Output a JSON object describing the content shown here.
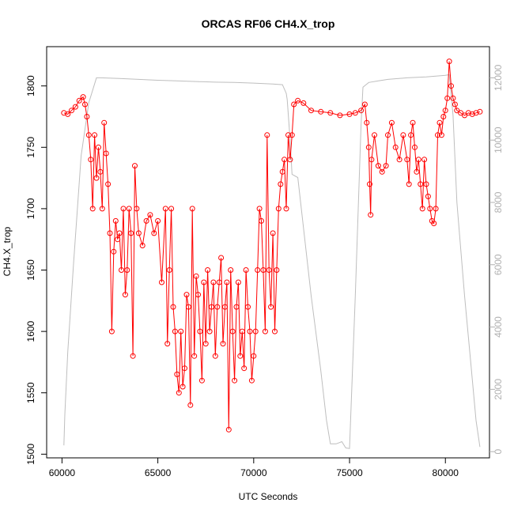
{
  "chart_data": {
    "type": "line",
    "title": "ORCAS RF06 CH4.X_trop",
    "xlabel": "UTC Seconds",
    "ylabel": "CH4.X_trop",
    "xlim": [
      59200,
      82300
    ],
    "ylim": [
      1497,
      1832
    ],
    "y2lim": [
      -200,
      13000
    ],
    "x_ticks": [
      "60000",
      "65000",
      "70000",
      "75000",
      "80000"
    ],
    "y_ticks": [
      "1500",
      "1550",
      "1600",
      "1650",
      "1700",
      "1750",
      "1800"
    ],
    "y2_ticks": [
      "0",
      "2000",
      "4000",
      "6000",
      "8000",
      "10000",
      "12000"
    ],
    "grid": false,
    "legend": "none",
    "colors": {
      "ch4": "#ff0000",
      "altitude": "#bebebe",
      "axis": "#000000",
      "right_axis": "#b0b0b0"
    },
    "series": [
      {
        "axis": "right",
        "style": "line",
        "x": [
          60100,
          60150,
          60300,
          60600,
          61000,
          61400,
          61800,
          62000,
          63000,
          64000,
          65000,
          66000,
          67000,
          68000,
          69000,
          70000,
          71000,
          71500,
          71700,
          71750,
          71900,
          72000,
          72300,
          73000,
          73500,
          73800,
          74000,
          74300,
          74600,
          74800,
          75000,
          75300,
          75600,
          75700,
          76000,
          76500,
          77000,
          78000,
          79000,
          80000,
          80200,
          80400,
          80600,
          81000,
          81300,
          81600,
          81800
        ],
        "values": [
          200,
          1200,
          3200,
          6000,
          9500,
          11200,
          12000,
          12000,
          11980,
          11950,
          11920,
          11900,
          11880,
          11860,
          11850,
          11830,
          11800,
          11780,
          11500,
          11300,
          10000,
          8900,
          8800,
          5000,
          2600,
          1000,
          250,
          250,
          320,
          120,
          100,
          5000,
          10500,
          11700,
          11850,
          11900,
          11950,
          12000,
          12030,
          12080,
          12100,
          10800,
          8000,
          5000,
          3000,
          1000,
          150
        ]
      },
      {
        "axis": "left",
        "style": "points-lines",
        "x": [
          60100,
          60300,
          60500,
          60700,
          60900,
          61100,
          61200,
          61300,
          61400,
          61500,
          61600,
          61700,
          61800,
          61900,
          62000,
          62100,
          62200,
          62300,
          62400,
          62500,
          62600,
          62700,
          62800,
          62900,
          63000,
          63100,
          63200,
          63300,
          63400,
          63500,
          63600,
          63700,
          63800,
          63900,
          64000,
          64200,
          64400,
          64600,
          64800,
          65000,
          65200,
          65400,
          65500,
          65600,
          65700,
          65800,
          65900,
          66000,
          66100,
          66200,
          66300,
          66400,
          66500,
          66600,
          66700,
          66800,
          66900,
          67000,
          67100,
          67200,
          67300,
          67400,
          67500,
          67600,
          67700,
          67800,
          67900,
          68000,
          68100,
          68200,
          68300,
          68400,
          68500,
          68600,
          68700,
          68800,
          68900,
          69000,
          69100,
          69200,
          69300,
          69400,
          69500,
          69600,
          69700,
          69800,
          69900,
          70000,
          70100,
          70200,
          70300,
          70400,
          70500,
          70600,
          70700,
          70800,
          70900,
          71000,
          71100,
          71200,
          71300,
          71400,
          71500,
          71600,
          71700,
          71800,
          71900,
          72000,
          72100,
          72300,
          72600,
          73000,
          73500,
          74000,
          74500,
          75000,
          75300,
          75600,
          75800,
          75900,
          76000,
          76050,
          76100,
          76150,
          76300,
          76500,
          76700,
          76900,
          77000,
          77200,
          77400,
          77600,
          77800,
          78000,
          78100,
          78200,
          78300,
          78400,
          78500,
          78600,
          78700,
          78800,
          78900,
          79000,
          79100,
          79200,
          79300,
          79400,
          79500,
          79600,
          79700,
          79800,
          79900,
          80000,
          80100,
          80200,
          80300,
          80400,
          80500,
          80600,
          80800,
          81000,
          81200,
          81400,
          81600,
          81800
        ],
        "values": [
          1778,
          1777,
          1780,
          1783,
          1788,
          1791,
          1785,
          1775,
          1760,
          1740,
          1700,
          1760,
          1725,
          1750,
          1730,
          1700,
          1770,
          1745,
          1720,
          1680,
          1600,
          1665,
          1690,
          1675,
          1680,
          1650,
          1700,
          1630,
          1650,
          1700,
          1680,
          1580,
          1735,
          1700,
          1680,
          1670,
          1690,
          1695,
          1680,
          1690,
          1640,
          1700,
          1590,
          1650,
          1700,
          1620,
          1600,
          1565,
          1550,
          1600,
          1555,
          1570,
          1630,
          1620,
          1540,
          1700,
          1580,
          1645,
          1630,
          1600,
          1560,
          1640,
          1590,
          1650,
          1600,
          1620,
          1640,
          1580,
          1620,
          1640,
          1660,
          1590,
          1620,
          1640,
          1520,
          1650,
          1600,
          1560,
          1620,
          1640,
          1580,
          1600,
          1570,
          1650,
          1620,
          1600,
          1560,
          1580,
          1600,
          1650,
          1700,
          1690,
          1650,
          1600,
          1760,
          1650,
          1620,
          1680,
          1600,
          1650,
          1700,
          1720,
          1730,
          1740,
          1700,
          1760,
          1740,
          1760,
          1785,
          1788,
          1786,
          1780,
          1779,
          1778,
          1776,
          1777,
          1778,
          1780,
          1785,
          1770,
          1750,
          1720,
          1695,
          1740,
          1760,
          1735,
          1730,
          1735,
          1760,
          1770,
          1750,
          1740,
          1760,
          1740,
          1720,
          1760,
          1770,
          1750,
          1730,
          1740,
          1720,
          1700,
          1740,
          1720,
          1710,
          1700,
          1690,
          1688,
          1700,
          1760,
          1770,
          1760,
          1775,
          1780,
          1790,
          1820,
          1800,
          1790,
          1785,
          1780,
          1778,
          1776,
          1778,
          1777,
          1778,
          1779
        ]
      }
    ]
  }
}
